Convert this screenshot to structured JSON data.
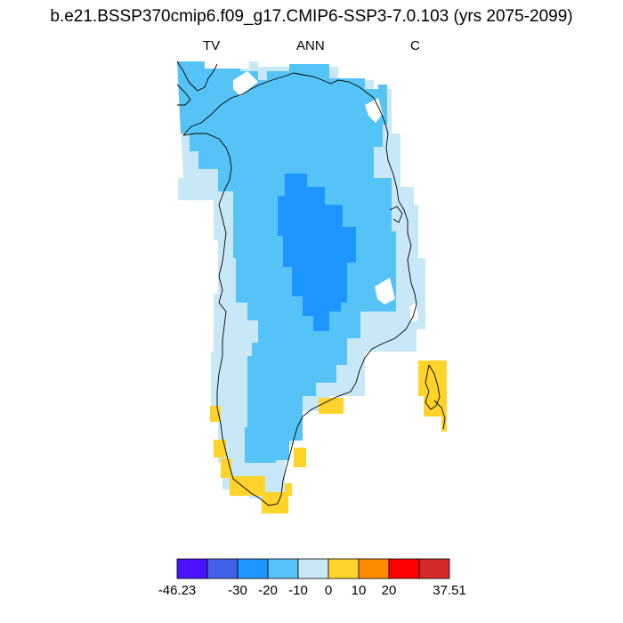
{
  "title": "b.e21.BSSP370cmip6.f09_g17.CMIP6-SSP3-7.0.103 (yrs 2075-2099)",
  "left_label": "TV",
  "center_label": "ANN",
  "right_label": "C",
  "colorbar": {
    "colors": [
      "#4b12ff",
      "#4161e8",
      "#1e96ff",
      "#55c3f5",
      "#c9e8f7",
      "#ffd42a",
      "#ff8a00",
      "#ff0000",
      "#d42a2a"
    ],
    "tick_labels": [
      "-46.23",
      "-30",
      "-20",
      "-10",
      "0",
      "10",
      "20",
      "37.51"
    ]
  },
  "map_colors": {
    "light_blue": "#c9e8f7",
    "mid_blue": "#55c3f5",
    "deep_blue": "#1e96ff",
    "yellow": "#ffd42a",
    "coast": "#000000"
  }
}
